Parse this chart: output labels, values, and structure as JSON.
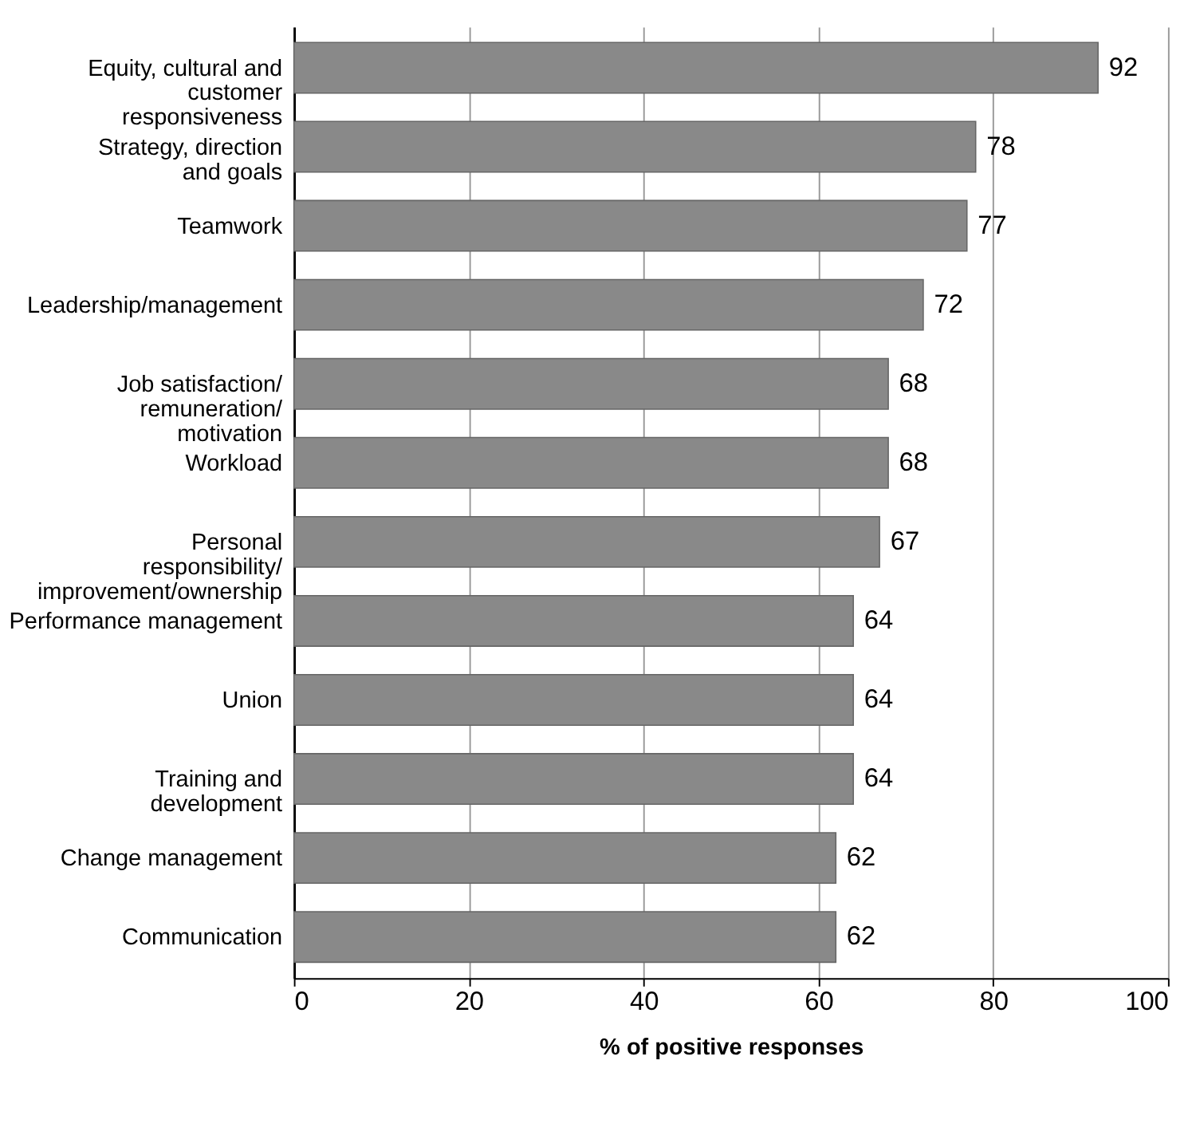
{
  "chart_data": {
    "type": "bar",
    "orientation": "horizontal",
    "xlabel": "% of positive responses",
    "categories": [
      "Equity, cultural and customer responsiveness",
      "Strategy, direction and goals",
      "Teamwork",
      "Leadership/management",
      "Job satisfaction/remuneration/motivation",
      "Workload",
      "Personal responsibility/improvement/ownership",
      "Performance management",
      "Union",
      "Training and development",
      "Change management",
      "Communication"
    ],
    "values": [
      92,
      78,
      77,
      72,
      68,
      68,
      67,
      64,
      64,
      64,
      62,
      62
    ],
    "color": "#898989",
    "xlim": [
      0,
      100
    ],
    "xticks": [
      0,
      20,
      40,
      60,
      80,
      100
    ],
    "grid": "x",
    "data_labels": true
  }
}
